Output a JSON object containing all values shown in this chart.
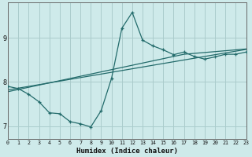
{
  "xlabel": "Humidex (Indice chaleur)",
  "ylabel": "",
  "bg_color": "#ceeaea",
  "grid_color": "#aacccc",
  "line_color": "#236b6b",
  "x_data": [
    0,
    1,
    2,
    3,
    4,
    5,
    6,
    7,
    8,
    9,
    10,
    11,
    12,
    13,
    14,
    15,
    16,
    17,
    18,
    19,
    20,
    21,
    22,
    23
  ],
  "line1_y": [
    7.9,
    7.85,
    7.72,
    7.55,
    7.3,
    7.28,
    7.1,
    7.05,
    6.98,
    7.35,
    8.08,
    9.22,
    9.58,
    8.95,
    8.82,
    8.73,
    8.62,
    8.68,
    8.58,
    8.52,
    8.57,
    8.63,
    8.63,
    8.68
  ],
  "line2_y": [
    7.82,
    7.86,
    7.9,
    7.94,
    7.98,
    8.02,
    8.06,
    8.1,
    8.14,
    8.18,
    8.22,
    8.26,
    8.3,
    8.34,
    8.38,
    8.42,
    8.46,
    8.5,
    8.54,
    8.58,
    8.62,
    8.66,
    8.7,
    8.74
  ],
  "line3_y": [
    7.78,
    7.83,
    7.88,
    7.93,
    7.98,
    8.03,
    8.08,
    8.13,
    8.18,
    8.23,
    8.28,
    8.33,
    8.38,
    8.43,
    8.48,
    8.53,
    8.58,
    8.63,
    8.65,
    8.67,
    8.69,
    8.71,
    8.73,
    8.75
  ],
  "xlim": [
    0,
    23
  ],
  "ylim": [
    6.7,
    9.8
  ],
  "yticks": [
    7,
    8,
    9
  ],
  "xticks": [
    0,
    1,
    2,
    3,
    4,
    5,
    6,
    7,
    8,
    9,
    10,
    11,
    12,
    13,
    14,
    15,
    16,
    17,
    18,
    19,
    20,
    21,
    22,
    23
  ]
}
